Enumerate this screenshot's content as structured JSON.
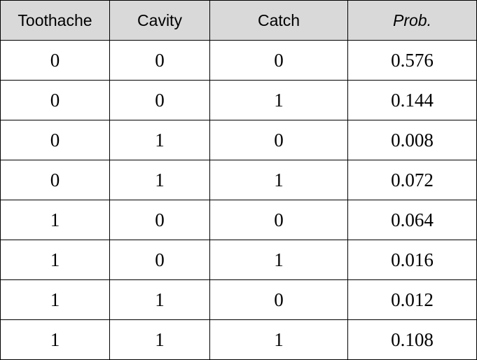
{
  "table": {
    "headers": [
      "Toothache",
      "Cavity",
      "Catch",
      "Prob."
    ],
    "rows": [
      [
        "0",
        "0",
        "0",
        "0.576"
      ],
      [
        "0",
        "0",
        "1",
        "0.144"
      ],
      [
        "0",
        "1",
        "0",
        "0.008"
      ],
      [
        "0",
        "1",
        "1",
        "0.072"
      ],
      [
        "1",
        "0",
        "0",
        "0.064"
      ],
      [
        "1",
        "0",
        "1",
        "0.016"
      ],
      [
        "1",
        "1",
        "0",
        "0.012"
      ],
      [
        "1",
        "1",
        "1",
        "0.108"
      ]
    ]
  },
  "colors": {
    "header_background": "#d9d9d9",
    "border": "#000000",
    "text": "#000000"
  }
}
